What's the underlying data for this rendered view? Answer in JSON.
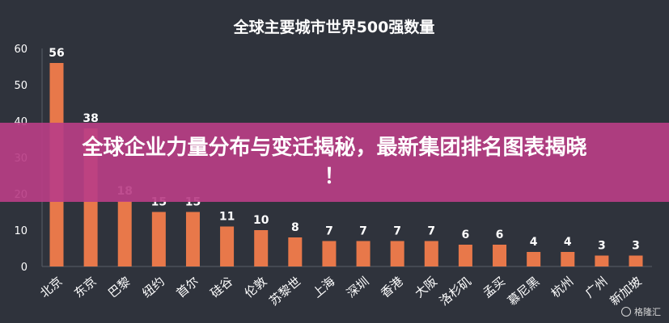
{
  "chart_data": {
    "type": "bar",
    "title": "全球主要城市世界500强数量",
    "xlabel": "",
    "ylabel": "",
    "ylim": [
      0,
      60
    ],
    "yticks": [
      0,
      10,
      20,
      30,
      40,
      50,
      60
    ],
    "categories": [
      "北京",
      "东京",
      "巴黎",
      "纽约",
      "首尔",
      "硅谷",
      "伦敦",
      "苏黎世",
      "上海",
      "深圳",
      "香港",
      "大阪",
      "洛杉矶",
      "孟买",
      "慕尼黑",
      "杭州",
      "广州",
      "新加坡"
    ],
    "values": [
      56,
      38,
      18,
      15,
      15,
      11,
      10,
      8,
      7,
      7,
      7,
      7,
      6,
      6,
      4,
      4,
      3,
      3
    ],
    "bar_color": "#e8784a",
    "grid": false
  },
  "banner": {
    "line1": "全球企业力量分布与变迁揭秘，最新集团排名图表揭晓",
    "line2": "！"
  },
  "watermark": {
    "text": "格隆汇"
  }
}
